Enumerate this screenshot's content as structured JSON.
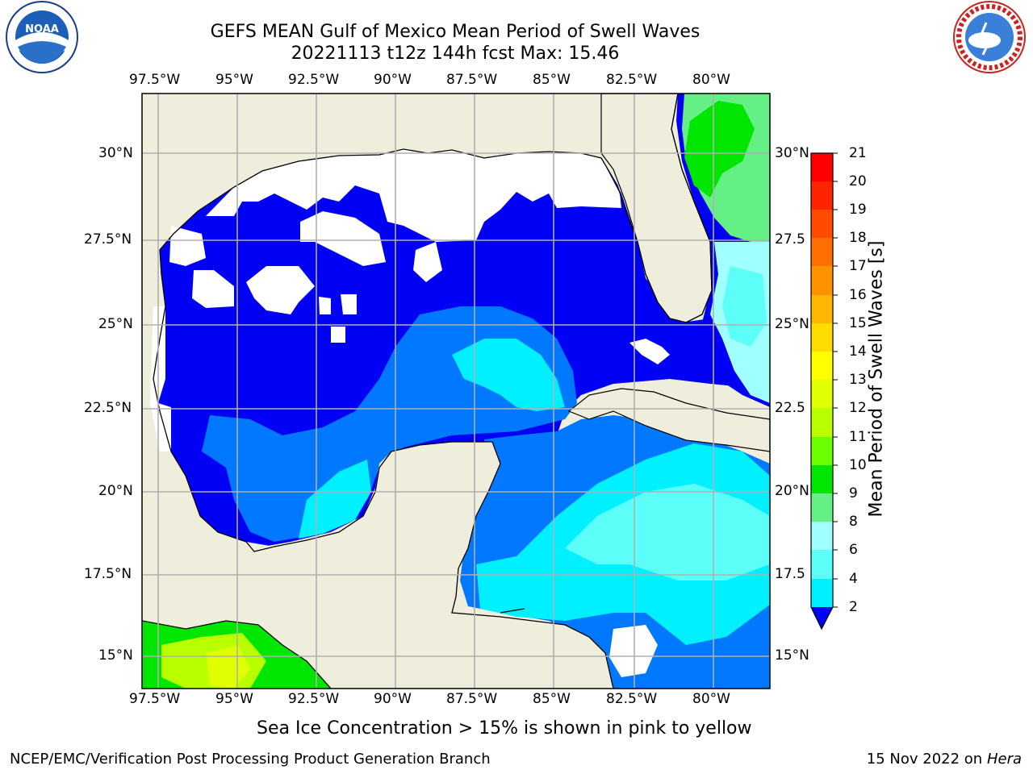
{
  "header": {
    "title_line1": "GEFS MEAN Gulf of Mexico Mean Period of Swell Waves",
    "title_line2": "20221113 t12z 144h fcst   Max: 15.46"
  },
  "logos": {
    "left": "noaa-logo",
    "right": "nws-logo",
    "noaa_text": "NOAA"
  },
  "map": {
    "lon_labels": [
      "97.5°W",
      "95°W",
      "92.5°W",
      "90°W",
      "87.5°W",
      "85°W",
      "82.5°W",
      "80°W"
    ],
    "lat_labels": [
      "30°N",
      "27.5°N",
      "25°N",
      "22.5°N",
      "20°N",
      "17.5°N",
      "15°N"
    ],
    "lat_labels_right": [
      "30°N",
      "27.5",
      "25°N",
      "22.5",
      "20°N",
      "17.5",
      "15°N"
    ],
    "colors": {
      "land": "#efeedd",
      "coast": "#000000",
      "grid": "#b0b0b0"
    }
  },
  "colorbar": {
    "label": "Mean Period of Swell Waves [s]",
    "ticks": [
      "21",
      "20",
      "19",
      "18",
      "17",
      "16",
      "15",
      "14",
      "13",
      "12",
      "11",
      "10",
      "9",
      "8",
      "6",
      "4",
      "2"
    ],
    "colors": [
      "#ff0000",
      "#ff2400",
      "#ff4a00",
      "#ff6e00",
      "#ff9200",
      "#ffb600",
      "#ffdc00",
      "#ffff00",
      "#e0ff00",
      "#b8ff00",
      "#6cff00",
      "#00e600",
      "#64f084",
      "#a0ffff",
      "#5cfff8",
      "#00f0ff",
      "#0078ff",
      "#0000f5"
    ]
  },
  "note": "Sea Ice Concentration > 15% is shown in pink to yellow",
  "footer": {
    "left": "NCEP/EMC/Verification Post Processing Product Generation Branch",
    "right_date": "15 Nov 2022 on",
    "right_host": "Hera"
  }
}
